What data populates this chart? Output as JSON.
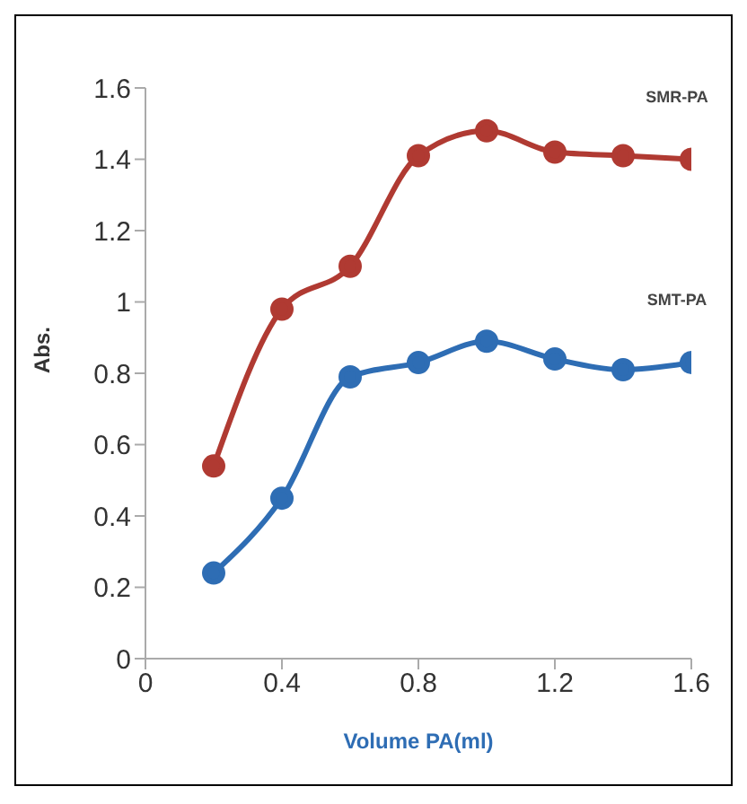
{
  "chart_data": {
    "type": "line",
    "xlabel": "Volume PA(ml)",
    "ylabel": "Abs.",
    "x": [
      0.2,
      0.4,
      0.6,
      0.8,
      1.0,
      1.2,
      1.4,
      1.6
    ],
    "series": [
      {
        "name": "SMR-PA",
        "color": "#b03a32",
        "values": [
          0.54,
          0.98,
          1.1,
          1.41,
          1.48,
          1.42,
          1.41,
          1.4
        ]
      },
      {
        "name": "SMT-PA",
        "color": "#2e6db4",
        "values": [
          0.24,
          0.45,
          0.79,
          0.83,
          0.89,
          0.84,
          0.81,
          0.83
        ]
      }
    ],
    "xlim": [
      0,
      1.6
    ],
    "xticks": [
      0,
      0.4,
      0.8,
      1.2,
      1.6
    ],
    "ylim": [
      0,
      1.6
    ],
    "yticks": [
      0,
      0.2,
      0.4,
      0.6,
      0.8,
      1,
      1.2,
      1.4,
      1.6
    ],
    "grid": false,
    "legend": false,
    "marker": "circle",
    "line_style": "solid"
  }
}
